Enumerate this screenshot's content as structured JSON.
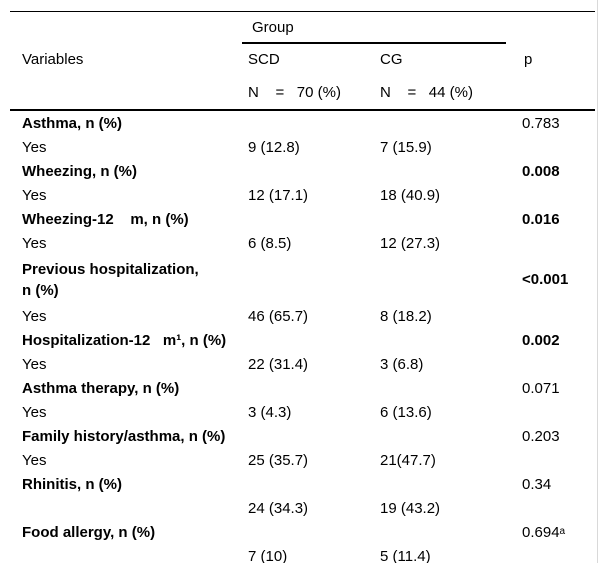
{
  "colors": {
    "text": "#000000",
    "border": "#000000",
    "edge_line": "#d9d9d9",
    "background": "#ffffff"
  },
  "table": {
    "header": {
      "variables_label": "Variables",
      "group_label": "Group",
      "scd_label": "SCD",
      "cg_label": "CG",
      "p_label": "p",
      "scd_n": "N    =   70 (%)",
      "cg_n": "N    =   44 (%)"
    },
    "rows": [
      {
        "label": "Asthma, n (%)",
        "scd": "",
        "cg": "",
        "p": "0.783"
      },
      {
        "label": "Yes",
        "scd": "9 (12.8)",
        "cg": "7 (15.9)",
        "p": ""
      },
      {
        "label": "Wheezing, n (%)",
        "scd": "",
        "cg": "",
        "p": "0.008"
      },
      {
        "label": "Yes",
        "scd": "12 (17.1)",
        "cg": "18 (40.9)",
        "p": ""
      },
      {
        "label": "Wheezing-12    m, n (%)",
        "scd": "",
        "cg": "",
        "p": "0.016"
      },
      {
        "label": "Yes",
        "scd": "6 (8.5)",
        "cg": "12 (27.3)",
        "p": ""
      },
      {
        "label": "Previous hospitalization,\nn (%)",
        "scd": "",
        "cg": "",
        "p": "<0.001"
      },
      {
        "label": "Yes",
        "scd": "46 (65.7)",
        "cg": "8 (18.2)",
        "p": ""
      },
      {
        "label": "Hospitalization-12   m¹, n (%)",
        "scd": "",
        "cg": "",
        "p": "0.002"
      },
      {
        "label": "Yes",
        "scd": "22 (31.4)",
        "cg": "3 (6.8)",
        "p": ""
      },
      {
        "label": "Asthma therapy, n (%)",
        "scd": "",
        "cg": "",
        "p": "0.071"
      },
      {
        "label": "Yes",
        "scd": "3 (4.3)",
        "cg": "6 (13.6)",
        "p": ""
      },
      {
        "label": "Family history/asthma, n (%)",
        "scd": "",
        "cg": "",
        "p": "0.203"
      },
      {
        "label": "Yes",
        "scd": "25 (35.7)",
        "cg": "21(47.7)",
        "p": ""
      },
      {
        "label": "Rhinitis, n (%)",
        "scd": "",
        "cg": "",
        "p": "0.34"
      },
      {
        "label": "",
        "scd": "24 (34.3)",
        "cg": "19 (43.2)",
        "p": ""
      },
      {
        "label": "Food allergy, n (%)",
        "scd": "",
        "cg": "",
        "p": "0.694",
        "p_sup": "a"
      },
      {
        "label": "",
        "scd": "7 (10)",
        "cg": "5 (11.4)",
        "p": ""
      }
    ]
  }
}
